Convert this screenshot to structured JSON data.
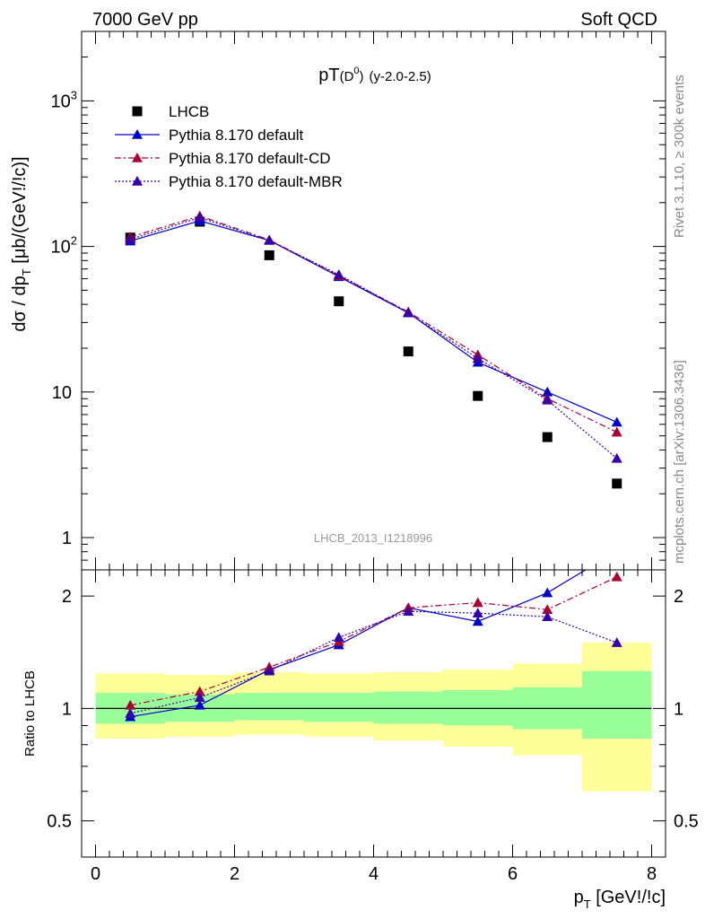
{
  "header": {
    "left": "7000 GeV pp",
    "right": "Soft QCD"
  },
  "side_labels": {
    "rivet": "Rivet 3.1.10, ≥ 300k events",
    "mcplots": "mcplots.cern.ch [arXiv:1306.3436]"
  },
  "plot_title": {
    "main": "pT",
    "particle": "(D",
    "superscript": "0",
    "close": ")",
    "range": "(y-2.0-2.5)"
  },
  "analysis_id": "LHCB_2013_I1218996",
  "colors": {
    "lhcb": "#000000",
    "default": "#0000cc",
    "cd": "#aa0033",
    "mbr": "#3300aa",
    "band_inner": "#99ff99",
    "band_outer": "#ffff99"
  },
  "chart_data": [
    {
      "type": "scatter",
      "panel": "main",
      "ylabel": "dσ / dp_T [μb/(GeV!/!c)]",
      "yscale": "log",
      "ylim": [
        0.6,
        3000
      ],
      "xlim": [
        -0.2,
        8.2
      ],
      "yticks": [
        {
          "value": 1,
          "label": "1"
        },
        {
          "value": 10,
          "label": "10"
        },
        {
          "value": 100,
          "label": "10",
          "sup": "2"
        },
        {
          "value": 1000,
          "label": "10",
          "sup": "3"
        }
      ],
      "x": [
        0.5,
        1.5,
        2.5,
        3.5,
        4.5,
        5.5,
        6.5,
        7.5
      ],
      "series": [
        {
          "name": "LHCB",
          "key": "lhcb",
          "marker": "square",
          "line": "none",
          "values": [
            115,
            148,
            87,
            42,
            19,
            9.4,
            4.9,
            2.35
          ]
        },
        {
          "name": "Pythia 8.170 default",
          "key": "default",
          "marker": "triangle",
          "line": "solid",
          "values": [
            109,
            150,
            110,
            62,
            35,
            16,
            10,
            6.2
          ]
        },
        {
          "name": "Pythia 8.170 default-CD",
          "key": "cd",
          "marker": "triangle",
          "line": "dashdot",
          "values": [
            116,
            162,
            111,
            63,
            35.5,
            18,
            9,
            5.3
          ]
        },
        {
          "name": "Pythia 8.170 default-MBR",
          "key": "mbr",
          "marker": "triangle",
          "line": "dotted",
          "values": [
            112,
            158,
            110,
            64,
            35,
            17,
            8.8,
            3.5
          ]
        }
      ]
    },
    {
      "type": "line",
      "panel": "ratio",
      "ylabel": "Ratio to LHCB",
      "xlabel": "p_T [GeV!/!c]",
      "yscale": "log",
      "ylim": [
        0.4,
        2.35
      ],
      "xlim": [
        -0.2,
        8.2
      ],
      "xticks": [
        0,
        2,
        4,
        6,
        8
      ],
      "yticks": [
        0.5,
        1,
        2
      ],
      "x": [
        0.5,
        1.5,
        2.5,
        3.5,
        4.5,
        5.5,
        6.5,
        7.5
      ],
      "band_bins": [
        0,
        1,
        2,
        3,
        4,
        5,
        6,
        7,
        8
      ],
      "band_inner": [
        [
          0.91,
          1.1
        ],
        [
          0.92,
          1.09
        ],
        [
          0.93,
          1.1
        ],
        [
          0.92,
          1.1
        ],
        [
          0.91,
          1.11
        ],
        [
          0.9,
          1.12
        ],
        [
          0.88,
          1.14
        ],
        [
          0.83,
          1.26
        ]
      ],
      "band_outer": [
        [
          0.83,
          1.24
        ],
        [
          0.84,
          1.23
        ],
        [
          0.85,
          1.25
        ],
        [
          0.84,
          1.24
        ],
        [
          0.82,
          1.25
        ],
        [
          0.79,
          1.27
        ],
        [
          0.75,
          1.32
        ],
        [
          0.6,
          1.5
        ]
      ],
      "series": [
        {
          "name": "Pythia 8.170 default",
          "key": "default",
          "line": "solid",
          "values": [
            0.95,
            1.02,
            1.27,
            1.48,
            1.86,
            1.71,
            2.04,
            2.64
          ]
        },
        {
          "name": "Pythia 8.170 default-CD",
          "key": "cd",
          "line": "dashdot",
          "values": [
            1.02,
            1.11,
            1.29,
            1.51,
            1.86,
            1.92,
            1.84,
            2.25
          ]
        },
        {
          "name": "Pythia 8.170 default-MBR",
          "key": "mbr",
          "line": "dotted",
          "values": [
            0.97,
            1.07,
            1.26,
            1.55,
            1.82,
            1.8,
            1.76,
            1.5
          ]
        }
      ]
    }
  ]
}
